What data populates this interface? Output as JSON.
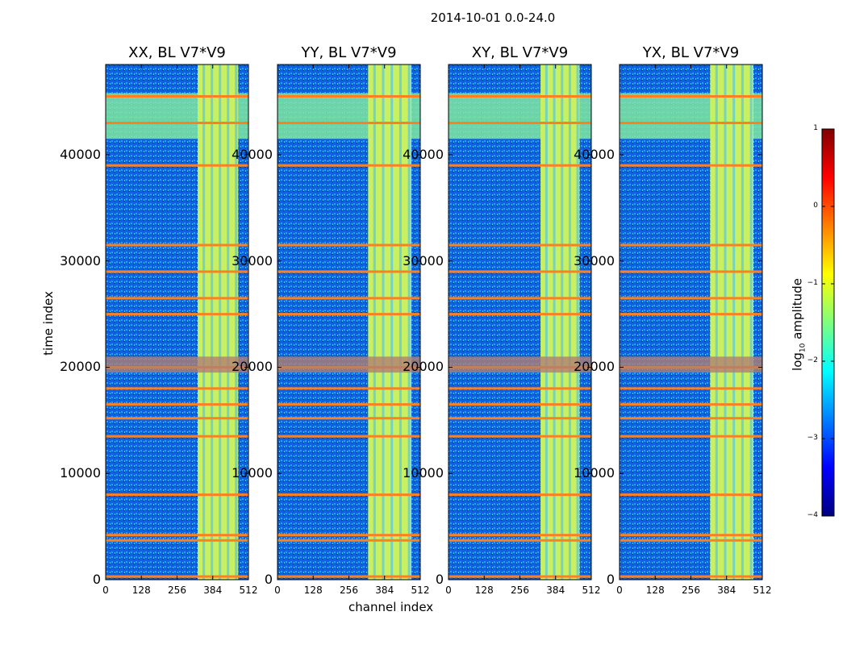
{
  "chart_data": {
    "type": "heatmap",
    "suptitle": "2014-10-01 0.0-24.0",
    "xlabel": "channel index",
    "ylabel": "time index",
    "xlim": [
      0,
      512
    ],
    "ylim": [
      0,
      48500
    ],
    "xticks": [
      "0",
      "128",
      "256",
      "384",
      "512"
    ],
    "yticks": [
      "0",
      "10000",
      "20000",
      "30000",
      "40000"
    ],
    "panels": [
      {
        "title": "XX, BL V7*V9",
        "band_channels": [
          330,
          475
        ]
      },
      {
        "title": "YY, BL V7*V9",
        "band_channels": [
          325,
          480
        ]
      },
      {
        "title": "XY, BL V7*V9",
        "band_channels": [
          330,
          470
        ]
      },
      {
        "title": "YX, BL V7*V9",
        "band_channels": [
          325,
          480
        ]
      }
    ],
    "flagged_time_rows": [
      43000,
      45500,
      39000,
      31500,
      29000,
      26500,
      25000,
      20000,
      18000,
      16500,
      15200,
      13500,
      8000,
      4200,
      3700,
      300
    ],
    "colorbar": {
      "label": "log",
      "label_sub": "10",
      "label_suffix": " amplitude",
      "range": [
        -4,
        1
      ],
      "ticks": [
        "1",
        "0",
        "−1",
        "−2",
        "−3",
        "−4"
      ],
      "colormap": [
        "#00007f",
        "#0000ff",
        "#007fff",
        "#00ffff",
        "#7fff7f",
        "#ffff00",
        "#ff7f00",
        "#ff0000",
        "#7f0000"
      ]
    }
  }
}
